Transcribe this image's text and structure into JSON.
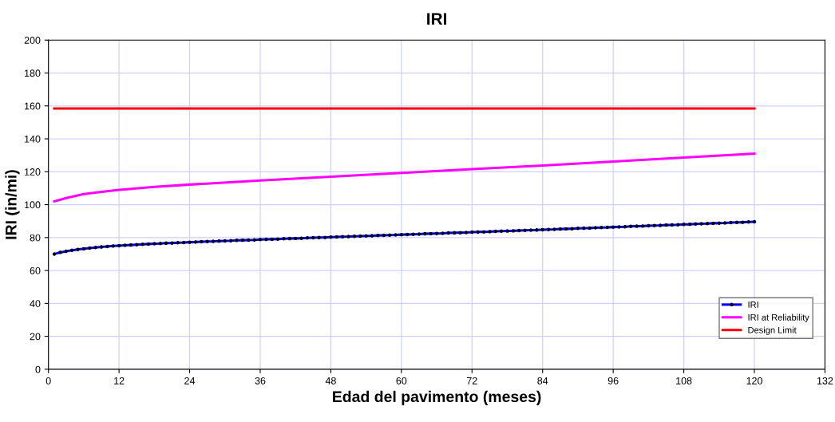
{
  "chart_data": {
    "type": "line",
    "title": "IRI",
    "xlabel": "Edad del pavimento (meses)",
    "ylabel": "IRI (in/mi)",
    "xlim": [
      0,
      132
    ],
    "xticks": [
      0,
      12,
      24,
      36,
      48,
      60,
      72,
      84,
      96,
      108,
      120,
      132
    ],
    "ylim": [
      0,
      200
    ],
    "yticks": [
      0,
      20,
      40,
      60,
      80,
      100,
      120,
      140,
      160,
      180,
      200
    ],
    "grid": true,
    "legend": "bottom right",
    "line_style": "solid",
    "series": [
      {
        "name": "IRI",
        "color": "#0000ff",
        "marker": "circle",
        "x": [
          1,
          2,
          3,
          4,
          5,
          6,
          7,
          8,
          9,
          10,
          11,
          12,
          13,
          14,
          15,
          16,
          17,
          18,
          19,
          20,
          21,
          22,
          23,
          24,
          25,
          26,
          27,
          28,
          29,
          30,
          31,
          32,
          33,
          34,
          35,
          36,
          37,
          38,
          39,
          40,
          41,
          42,
          43,
          44,
          45,
          46,
          47,
          48,
          49,
          50,
          51,
          52,
          53,
          54,
          55,
          56,
          57,
          58,
          59,
          60,
          61,
          62,
          63,
          64,
          65,
          66,
          67,
          68,
          69,
          70,
          71,
          72,
          73,
          74,
          75,
          76,
          77,
          78,
          79,
          80,
          81,
          82,
          83,
          84,
          85,
          86,
          87,
          88,
          89,
          90,
          91,
          92,
          93,
          94,
          95,
          96,
          97,
          98,
          99,
          100,
          101,
          102,
          103,
          104,
          105,
          106,
          107,
          108,
          109,
          110,
          111,
          112,
          113,
          114,
          115,
          116,
          117,
          118,
          119,
          120
        ],
        "values": [
          70.0,
          71.0,
          71.7,
          72.3,
          72.8,
          73.2,
          73.6,
          74.0,
          74.3,
          74.6,
          74.9,
          75.1,
          75.3,
          75.5,
          75.7,
          75.9,
          76.1,
          76.3,
          76.4,
          76.6,
          76.7,
          76.9,
          77.0,
          77.2,
          77.3,
          77.5,
          77.6,
          77.7,
          77.9,
          78.0,
          78.1,
          78.3,
          78.4,
          78.5,
          78.6,
          78.8,
          78.9,
          79.0,
          79.1,
          79.3,
          79.4,
          79.5,
          79.6,
          79.8,
          79.9,
          80.0,
          80.1,
          80.3,
          80.4,
          80.5,
          80.6,
          80.8,
          80.9,
          81.0,
          81.1,
          81.3,
          81.4,
          81.5,
          81.6,
          81.8,
          81.9,
          82.0,
          82.1,
          82.3,
          82.4,
          82.5,
          82.6,
          82.8,
          82.9,
          83.0,
          83.1,
          83.3,
          83.4,
          83.5,
          83.6,
          83.8,
          83.9,
          84.0,
          84.1,
          84.3,
          84.4,
          84.5,
          84.6,
          84.8,
          84.9,
          85.0,
          85.2,
          85.3,
          85.4,
          85.6,
          85.7,
          85.8,
          86.0,
          86.1,
          86.2,
          86.4,
          86.5,
          86.6,
          86.8,
          86.9,
          87.0,
          87.2,
          87.3,
          87.4,
          87.6,
          87.7,
          87.8,
          88.0,
          88.1,
          88.3,
          88.4,
          88.5,
          88.7,
          88.8,
          88.9,
          89.1,
          89.2,
          89.3,
          89.5,
          89.6
        ]
      },
      {
        "name": "IRI at Reliability",
        "color": "#ff00ff",
        "x": [
          1,
          3,
          6,
          9,
          12,
          18,
          24,
          36,
          48,
          60,
          72,
          84,
          96,
          108,
          120
        ],
        "values": [
          102,
          104,
          106.5,
          107.8,
          109,
          110.8,
          112.2,
          114.7,
          117,
          119.3,
          121.6,
          123.8,
          126.2,
          128.6,
          131
        ]
      },
      {
        "name": "Design Limit",
        "color": "#ff0000",
        "x": [
          1,
          120
        ],
        "values": [
          158.4,
          158.4
        ]
      }
    ]
  }
}
